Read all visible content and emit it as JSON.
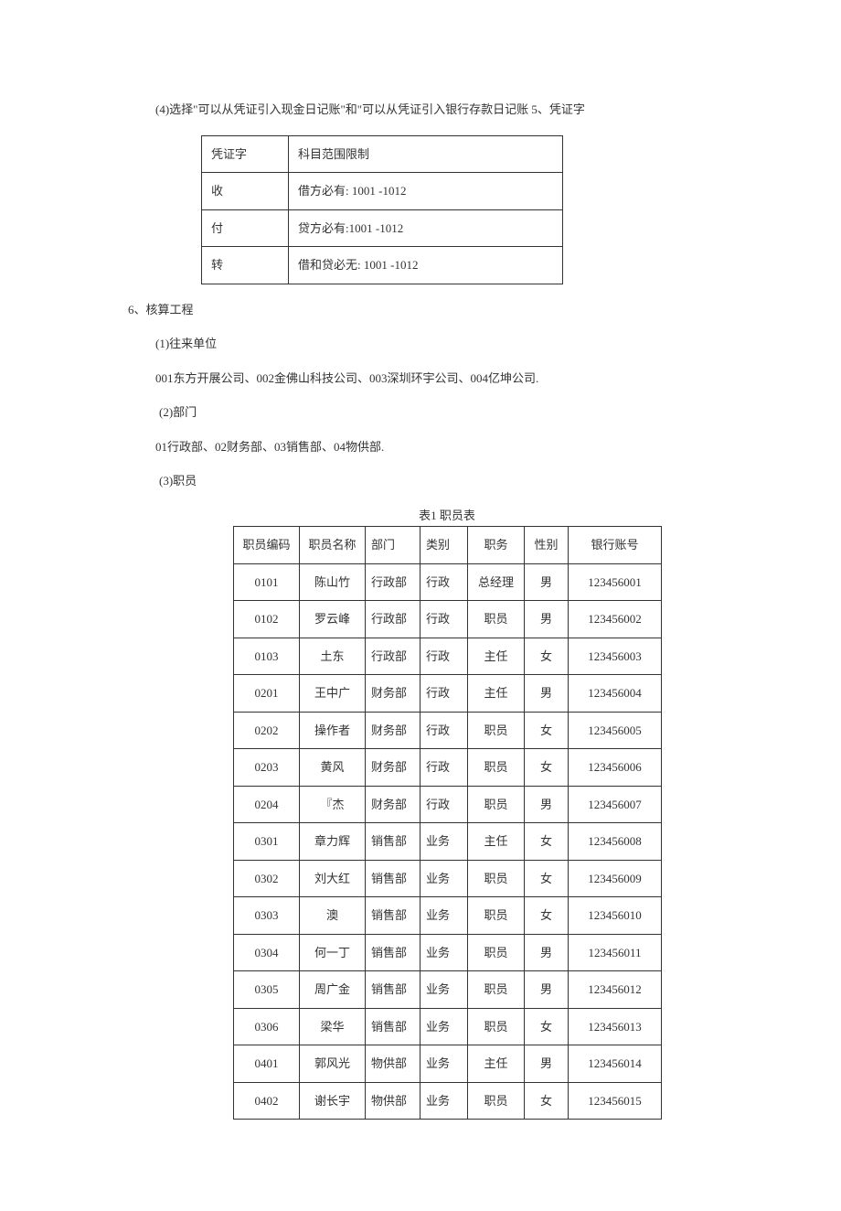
{
  "para4": "(4)选择\"可以从凭证引入现金日记账\"和\"可以从凭证引入银行存款日记账 5、凭证字",
  "voucherTable": {
    "headers": [
      "凭证字",
      "科目范围限制"
    ],
    "rows": [
      [
        "收",
        "借方必有: 1001 -1012"
      ],
      [
        "付",
        "贷方必有:1001 -1012"
      ],
      [
        "转",
        "借和贷必无: 1001 -1012"
      ]
    ]
  },
  "section6": "6、核算工程",
  "p1": "(1)往来单位",
  "p1b": "001东方开展公司、002金佛山科技公司、003深圳环宇公司、004亿坤公司.",
  "p2": "(2)部门",
  "p2b": "01行政部、02财务部、03销售部、04物供部.",
  "p3": "(3)职员",
  "empCaption": "表1 职员表",
  "empTable": {
    "headers": [
      "职员编码",
      "职员名称",
      "部门",
      "类别",
      "职务",
      "性别",
      "银行账号"
    ],
    "rows": [
      [
        "0101",
        "陈山竹",
        "行政部",
        "行政",
        "总经理",
        "男",
        "123456001"
      ],
      [
        "0102",
        "罗云峰",
        "行政部",
        "行政",
        "职员",
        "男",
        "123456002"
      ],
      [
        "0103",
        "土东",
        "行政部",
        "行政",
        "主任",
        "女",
        "123456003"
      ],
      [
        "0201",
        "王中广",
        "财务部",
        "行政",
        "主任",
        "男",
        "123456004"
      ],
      [
        "0202",
        "操作者",
        "财务部",
        "行政",
        "职员",
        "女",
        "123456005"
      ],
      [
        "0203",
        "黄风",
        "财务部",
        "行政",
        "职员",
        "女",
        "123456006"
      ],
      [
        "0204",
        "『杰",
        "财务部",
        "行政",
        "职员",
        "男",
        "123456007"
      ],
      [
        "0301",
        "章力辉",
        "销售部",
        "业务",
        "主任",
        "女",
        "123456008"
      ],
      [
        "0302",
        "刘大红",
        "销售部",
        "业务",
        "职员",
        "女",
        "123456009"
      ],
      [
        "0303",
        "澳",
        "销售部",
        "业务",
        "职员",
        "女",
        "123456010"
      ],
      [
        "0304",
        "何一丁",
        "销售部",
        "业务",
        "职员",
        "男",
        "123456011"
      ],
      [
        "0305",
        "周广金",
        "销售部",
        "业务",
        "职员",
        "男",
        "123456012"
      ],
      [
        "0306",
        "梁华",
        "销售部",
        "业务",
        "职员",
        "女",
        "123456013"
      ],
      [
        "0401",
        "郭风光",
        "物供部",
        "业务",
        "主任",
        "男",
        "123456014"
      ],
      [
        "0402",
        "谢长宇",
        "物供部",
        "业务",
        "职员",
        "女",
        "123456015"
      ]
    ]
  }
}
